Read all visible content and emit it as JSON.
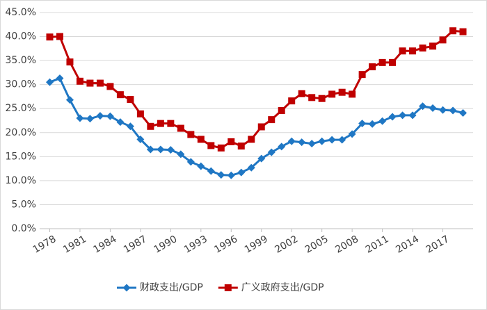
{
  "chart_data": {
    "type": "line",
    "x": [
      1978,
      1979,
      1980,
      1981,
      1982,
      1983,
      1984,
      1985,
      1986,
      1987,
      1988,
      1989,
      1990,
      1991,
      1992,
      1993,
      1994,
      1995,
      1996,
      1997,
      1998,
      1999,
      2000,
      2001,
      2002,
      2003,
      2004,
      2005,
      2006,
      2007,
      2008,
      2009,
      2010,
      2011,
      2012,
      2013,
      2014,
      2015,
      2016,
      2017,
      2018,
      2019
    ],
    "series": [
      {
        "name": "财政支出/GDP",
        "color": "#1f77c4",
        "marker": "diamond",
        "values": [
          30.5,
          31.3,
          26.8,
          23.0,
          22.9,
          23.5,
          23.4,
          22.2,
          21.3,
          18.6,
          16.5,
          16.5,
          16.4,
          15.5,
          13.9,
          13.0,
          12.0,
          11.2,
          11.1,
          11.7,
          12.7,
          14.6,
          15.9,
          17.1,
          18.2,
          18.0,
          17.7,
          18.2,
          18.5,
          18.5,
          19.7,
          21.9,
          21.8,
          22.4,
          23.3,
          23.6,
          23.6,
          25.5,
          25.1,
          24.7,
          24.6,
          24.1
        ]
      },
      {
        "name": "广义政府支出/GDP",
        "color": "#c00000",
        "marker": "square",
        "values": [
          39.9,
          40.0,
          34.7,
          30.7,
          30.3,
          30.3,
          29.6,
          27.9,
          26.9,
          23.9,
          21.3,
          21.9,
          21.9,
          20.9,
          19.6,
          18.6,
          17.3,
          16.8,
          18.1,
          17.2,
          18.6,
          21.2,
          22.7,
          24.6,
          26.6,
          28.1,
          27.3,
          27.1,
          28.0,
          28.4,
          28.0,
          32.1,
          33.7,
          34.6,
          34.6,
          37.0,
          37.0,
          37.6,
          38.0,
          39.3,
          41.2,
          41.0
        ]
      }
    ],
    "xlim": [
      1977,
      2020
    ],
    "xticks": [
      1978,
      1981,
      1984,
      1987,
      1990,
      1993,
      1996,
      1999,
      2002,
      2005,
      2008,
      2011,
      2014,
      2017
    ],
    "ylim": [
      0,
      45
    ],
    "yticks": [
      {
        "value": 0,
        "label": "0.0%"
      },
      {
        "value": 5,
        "label": "5.0%"
      },
      {
        "value": 10,
        "label": "10.0%"
      },
      {
        "value": 15,
        "label": "15.0%"
      },
      {
        "value": 20,
        "label": "20.0%"
      },
      {
        "value": 25,
        "label": "25.0%"
      },
      {
        "value": 30,
        "label": "30.0%"
      },
      {
        "value": 35,
        "label": "35.0%"
      },
      {
        "value": 40,
        "label": "40.0%"
      },
      {
        "value": 45,
        "label": "45.0%"
      }
    ],
    "grid": true,
    "legend": "bottom"
  }
}
